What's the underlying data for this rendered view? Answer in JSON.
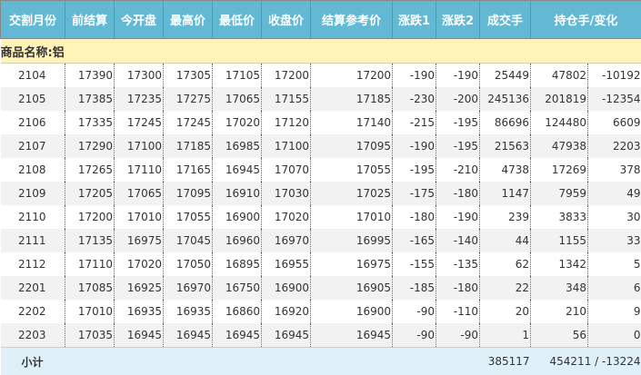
{
  "headers": [
    "交割月份",
    "前结算",
    "今开盘",
    "最高价",
    "最低价",
    "收盘价",
    "结算参考价",
    "涨跌1",
    "涨跌2",
    "成交手",
    "持仓手/变化"
  ],
  "commodity": "商品名称:铝",
  "rows": [
    [
      "2104",
      "17390",
      "17300",
      "17305",
      "17105",
      "17200",
      "17200",
      "-190",
      "-190",
      "25449",
      "47802",
      "-10192"
    ],
    [
      "2105",
      "17385",
      "17235",
      "17275",
      "17065",
      "17155",
      "17185",
      "-230",
      "-200",
      "245136",
      "201819",
      "-12354"
    ],
    [
      "2106",
      "17335",
      "17245",
      "17245",
      "17020",
      "17120",
      "17140",
      "-215",
      "-195",
      "86696",
      "124480",
      "6609"
    ],
    [
      "2107",
      "17290",
      "17100",
      "17185",
      "16985",
      "17100",
      "17095",
      "-190",
      "-195",
      "21563",
      "47938",
      "2203"
    ],
    [
      "2108",
      "17265",
      "17110",
      "17165",
      "16945",
      "17070",
      "17055",
      "-195",
      "-210",
      "4738",
      "17269",
      "378"
    ],
    [
      "2109",
      "17205",
      "17065",
      "17095",
      "16910",
      "17030",
      "17025",
      "-175",
      "-180",
      "1147",
      "7959",
      "49"
    ],
    [
      "2110",
      "17200",
      "17010",
      "17055",
      "16900",
      "17020",
      "17010",
      "-180",
      "-190",
      "239",
      "3833",
      "30"
    ],
    [
      "2111",
      "17135",
      "16975",
      "17045",
      "16960",
      "16970",
      "16995",
      "-165",
      "-140",
      "44",
      "1155",
      "33"
    ],
    [
      "2112",
      "17110",
      "17020",
      "17050",
      "16895",
      "16955",
      "16975",
      "-155",
      "-135",
      "62",
      "1342",
      "5"
    ],
    [
      "2201",
      "17085",
      "16925",
      "16970",
      "16750",
      "16900",
      "16905",
      "-185",
      "-180",
      "22",
      "348",
      "6"
    ],
    [
      "2202",
      "17010",
      "16935",
      "16935",
      "16860",
      "16920",
      "16900",
      "-90",
      "-110",
      "20",
      "210",
      "9"
    ],
    [
      "2203",
      "17035",
      "16945",
      "16945",
      "16945",
      "16945",
      "16945",
      "-90",
      "-90",
      "1",
      "56",
      "0"
    ]
  ],
  "subtotal": {
    "label": "小计",
    "volume": "385117",
    "open_interest": "454211 / -13224"
  }
}
